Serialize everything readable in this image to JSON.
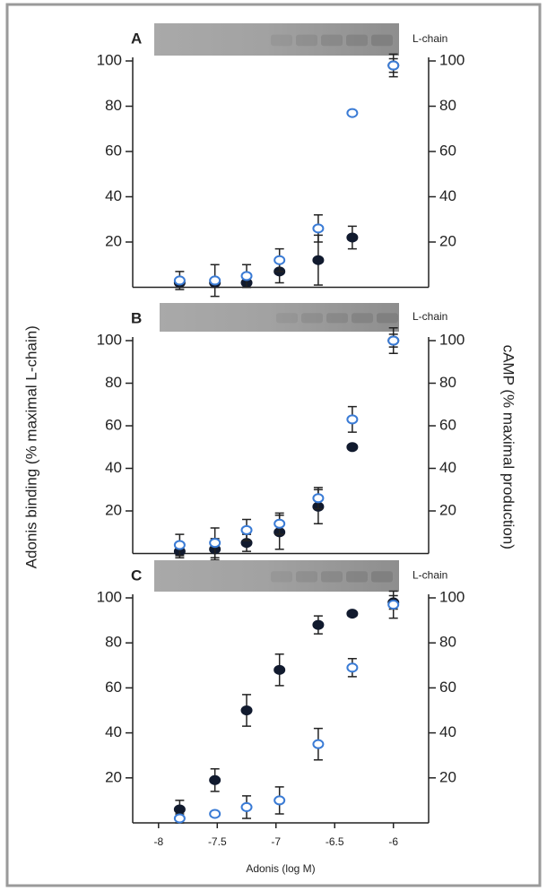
{
  "chart_data": [
    {
      "type": "scatter",
      "panel_label": "A",
      "band_label": "L-chain",
      "x": [
        -7.82,
        -7.52,
        -7.25,
        -6.97,
        -6.64,
        -6.35,
        -6
      ],
      "xlim": [
        -8.22,
        -5.7
      ],
      "ylim": [
        0,
        100
      ],
      "yticks": [
        20,
        40,
        60,
        80,
        100
      ],
      "y2lim": [
        0,
        100
      ],
      "y2ticks": [
        20,
        40,
        60,
        80,
        100
      ],
      "series": [
        {
          "color": "#111a2e",
          "values": [
            2,
            2,
            2,
            7,
            12,
            22,
            98
          ],
          "errors": [
            2,
            2,
            2,
            5,
            11,
            5,
            5
          ]
        },
        {
          "color": "#3a7bd5",
          "axis": "y2",
          "values": [
            3,
            3,
            5,
            12,
            26,
            77,
            98
          ],
          "errors": [
            4,
            7,
            5,
            5,
            6,
            1,
            3
          ]
        }
      ]
    },
    {
      "type": "scatter",
      "panel_label": "B",
      "band_label": "L-chain",
      "ylabel": "Adonis binding (% maximal L-chain)",
      "y2label": "cAMP (% maximal production)",
      "x": [
        -7.82,
        -7.52,
        -7.25,
        -6.97,
        -6.64,
        -6.35,
        -6
      ],
      "xlim": [
        -8.22,
        -5.7
      ],
      "ylim": [
        0,
        100
      ],
      "yticks": [
        20,
        40,
        60,
        80,
        100
      ],
      "y2lim": [
        0,
        100
      ],
      "y2ticks": [
        20,
        40,
        60,
        80,
        100
      ],
      "series": [
        {
          "color": "#111a2e",
          "values": [
            1,
            2,
            5,
            10,
            22,
            50,
            100
          ],
          "errors": [
            3,
            5,
            4,
            8,
            8,
            1,
            6
          ]
        },
        {
          "color": "#3a7bd5",
          "axis": "y2",
          "values": [
            4,
            5,
            11,
            14,
            26,
            63,
            100
          ],
          "errors": [
            5,
            7,
            5,
            5,
            5,
            6,
            3
          ]
        }
      ]
    },
    {
      "type": "scatter",
      "panel_label": "C",
      "band_label": "L-chain",
      "xlabel": "Adonis (log M)",
      "x": [
        -7.82,
        -7.52,
        -7.25,
        -6.97,
        -6.64,
        -6.35,
        -6
      ],
      "xlim": [
        -8.22,
        -5.7
      ],
      "xticks": [
        -8,
        -7.5,
        -7,
        -6.5,
        -6
      ],
      "ylim": [
        0,
        100
      ],
      "yticks": [
        20,
        40,
        60,
        80,
        100
      ],
      "y2lim": [
        0,
        100
      ],
      "y2ticks": [
        20,
        40,
        60,
        80,
        100
      ],
      "series": [
        {
          "color": "#111a2e",
          "values": [
            6,
            19,
            50,
            68,
            88,
            93,
            98
          ],
          "errors": [
            4,
            5,
            7,
            7,
            4,
            1,
            3
          ]
        },
        {
          "color": "#3a7bd5",
          "axis": "y2",
          "values": [
            2,
            4,
            7,
            10,
            35,
            69,
            97
          ],
          "errors": [
            2,
            1,
            5,
            6,
            7,
            4,
            6
          ]
        }
      ]
    }
  ]
}
